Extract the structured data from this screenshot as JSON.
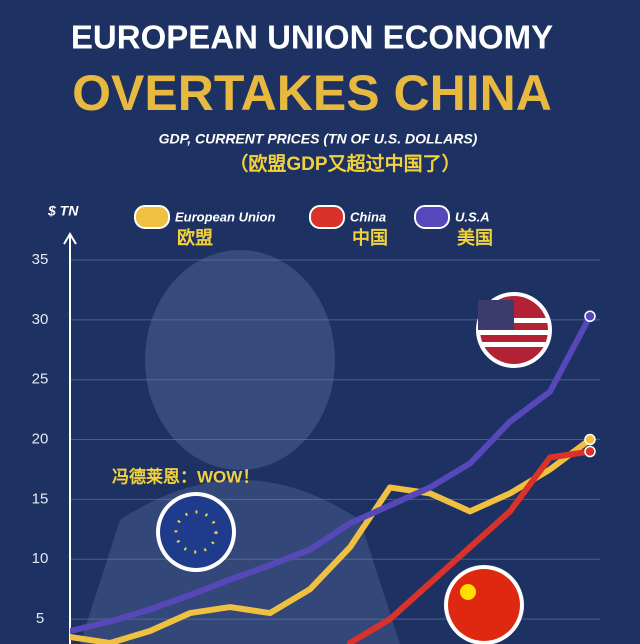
{
  "chart_data": {
    "type": "line",
    "title": "EUROPEAN UNION ECONOMY",
    "headline": "OVERTAKES CHINA",
    "subtitle": "GDP, CURRENT PRICES (TN OF U.S. DOLLARS)",
    "subtitle_cn": "（欧盟GDP又超过中国了）",
    "ylabel": "$ TN",
    "annotation": "冯德莱恩：WOW！",
    "categories": [
      null,
      null,
      null,
      null,
      null,
      null,
      null,
      null,
      null,
      null,
      null,
      null,
      null,
      null
    ],
    "series": [
      {
        "name": "European Union",
        "name_cn": "欧盟",
        "color": "#f0c040",
        "values": [
          3.5,
          3,
          4,
          5.5,
          6,
          5.5,
          7.5,
          11,
          16,
          15.5,
          14,
          15.5,
          17.5,
          20
        ]
      },
      {
        "name": "China",
        "name_cn": "中国",
        "color": "#d8322a",
        "values": [
          null,
          null,
          null,
          null,
          null,
          null,
          null,
          3,
          5,
          8,
          11,
          14,
          18.5,
          19
        ]
      },
      {
        "name": "U.S.A",
        "name_cn": "美国",
        "color": "#5648b8",
        "values": [
          4,
          4.8,
          5.8,
          7,
          8.3,
          9.5,
          10.8,
          13,
          14.5,
          16,
          18,
          21.5,
          24,
          30.3
        ]
      }
    ],
    "ylim": [
      3,
      35
    ],
    "yticks": [
      5,
      10,
      15,
      20,
      25,
      30,
      35
    ],
    "grid": true
  }
}
